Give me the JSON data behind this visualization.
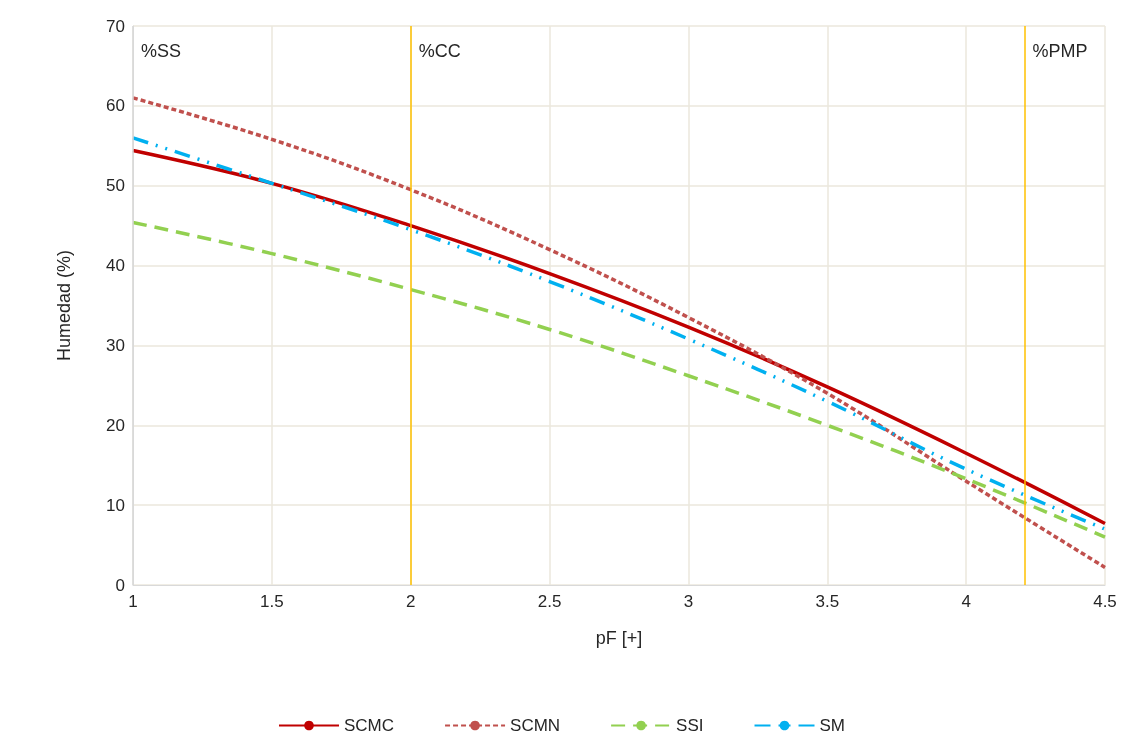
{
  "chart_data": {
    "type": "line",
    "xlabel": "pF [+]",
    "ylabel": "Humedad (%)",
    "x": [
      1,
      1.5,
      2,
      2.5,
      3,
      3.5,
      4,
      4.5
    ],
    "series": [
      {
        "name": "SCMC",
        "color": "#c00000",
        "line_style": "solid",
        "values": [
          54.4,
          50.3,
          45,
          39,
          32.3,
          24.8,
          16.5,
          7.7
        ]
      },
      {
        "name": "SCMN",
        "color": "#c0504d",
        "line_style": "dotted",
        "values": [
          61,
          55.8,
          49.5,
          42,
          33.5,
          24,
          13,
          2.2
        ]
      },
      {
        "name": "SSI",
        "color": "#92d050",
        "line_style": "dashed",
        "values": [
          45.4,
          41.5,
          37,
          32,
          26.2,
          20,
          13.3,
          6
        ]
      },
      {
        "name": "SM",
        "color": "#00b0f0",
        "line_style": "dashdot",
        "values": [
          56,
          50.3,
          44.5,
          38,
          30.8,
          23,
          14.5,
          7
        ]
      }
    ],
    "xlim": [
      1,
      4.5
    ],
    "xticks": [
      1,
      1.5,
      2,
      2.5,
      3,
      3.5,
      4,
      4.5
    ],
    "ylim": [
      0,
      70
    ],
    "yticks": [
      0,
      10,
      20,
      30,
      40,
      50,
      60,
      70
    ],
    "grid": true,
    "legend": "bottom",
    "marker": "none",
    "ref_lines": [
      {
        "axis": "x",
        "value": 1,
        "label": "%SS",
        "color": "#d9d9d9"
      },
      {
        "axis": "x",
        "value": 2,
        "label": "%CC",
        "color": "#ffc000"
      },
      {
        "axis": "x",
        "value": 4.21,
        "label": "%PMP",
        "color": "#ffc000"
      }
    ]
  }
}
